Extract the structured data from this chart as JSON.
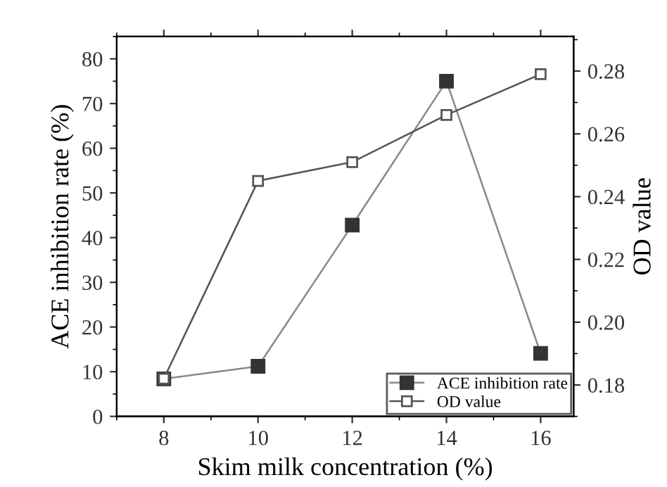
{
  "chart_data": {
    "type": "line",
    "xlabel": "Skim milk concentration (%)",
    "ylabel": "ACE inhibition rate (%)",
    "y2label": "OD value",
    "x": [
      8,
      10,
      12,
      14,
      16
    ],
    "series": [
      {
        "name": "ACE inhibition rate",
        "color": "#333333",
        "values": [
          8.4,
          11.2,
          42.8,
          75.0,
          14.1
        ],
        "marker": "square"
      },
      {
        "name": "OD value",
        "color": "#555555",
        "values": [
          0.182,
          0.245,
          0.251,
          0.266,
          0.279
        ],
        "marker": "square",
        "axis": "y2"
      }
    ],
    "xlim": [
      7,
      16.7
    ],
    "xticks": [
      8,
      10,
      12,
      14,
      16
    ],
    "ylim": [
      0,
      85
    ],
    "yticks": [
      0,
      10,
      20,
      30,
      40,
      50,
      60,
      70,
      80
    ],
    "y2lim": [
      0.17,
      0.291
    ],
    "y2ticks": [
      {
        "value": 0.18,
        "label": "0.18"
      },
      {
        "value": 0.2,
        "label": "0.20"
      },
      {
        "value": 0.22,
        "label": "0.22"
      },
      {
        "value": 0.24,
        "label": "0.24"
      },
      {
        "value": 0.26,
        "label": "0.26"
      },
      {
        "value": 0.28,
        "label": "0.28"
      }
    ],
    "legend": "bottom right",
    "grid": false,
    "line_style": "solid"
  }
}
